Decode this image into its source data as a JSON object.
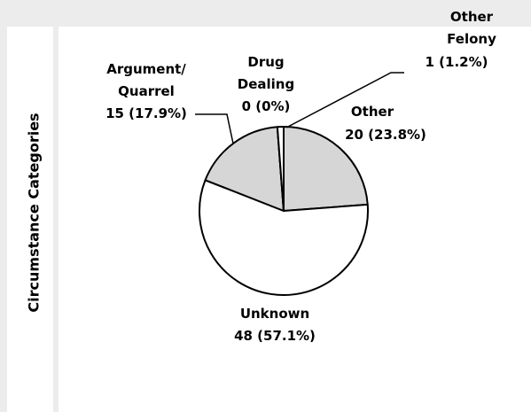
{
  "chart_data": {
    "type": "pie",
    "ylabel": "Circumstance Categories",
    "categories": [
      "Other",
      "Unknown",
      "Argument/\nQuarrel",
      "Drug\nDealing",
      "Other\nFelony"
    ],
    "values": [
      20,
      48,
      15,
      0,
      1
    ],
    "value_labels": [
      "20 (23.8%)",
      "48 (57.1%)",
      "15 (17.9%)",
      "0 (0%)",
      "1 (1.2%)"
    ],
    "colors": [
      "#d6d6d6",
      "#ffffff",
      "#d6d6d6",
      "#ffffff",
      "#ffffff"
    ],
    "start_angle": 0,
    "direction": "clockwise"
  }
}
